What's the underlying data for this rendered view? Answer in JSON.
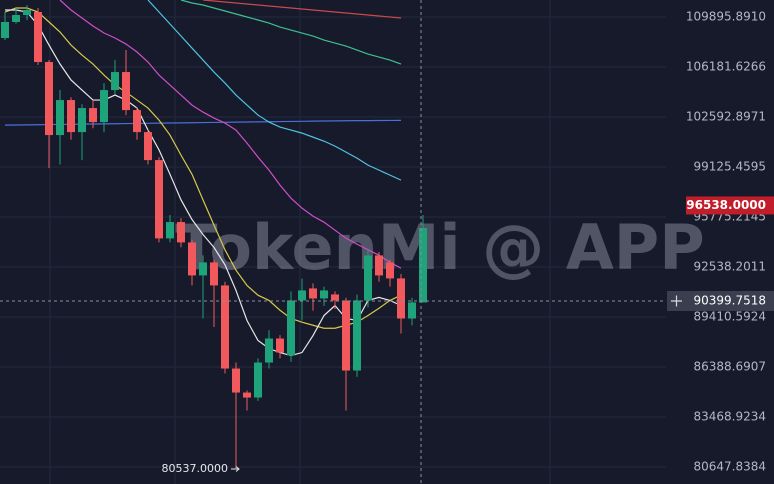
{
  "chart_data": {
    "type": "candlestick",
    "watermark": "TokenMi @ APP",
    "log_scale": true,
    "grid": true,
    "ylim": [
      79709,
      111189
    ],
    "yticks": [
      {
        "value": 109895.891,
        "label": "109895.8910"
      },
      106181.6266,
      102592.8971,
      99125.4595,
      95775.2145,
      92538.2011,
      89410.5924,
      86388.6907,
      83468.9234,
      80647.8384
    ],
    "up_color": "#1fa37a",
    "down_color": "#f2595c",
    "last_price": {
      "value": 96538,
      "label": "96538.0000"
    },
    "crosshair_price": 90399.7518,
    "low_marker": {
      "value": 80537,
      "label": "80537.0000"
    },
    "candles": {
      "open": [
        108320,
        109519,
        110047,
        110274,
        106545,
        101326,
        103795,
        101534,
        103225,
        102236,
        104512,
        105815,
        103083,
        101534,
        99596,
        94375,
        95442,
        94116,
        92003,
        92829,
        91372,
        86297,
        84883,
        84592,
        86654,
        88097,
        87072,
        90434,
        91184,
        90558,
        90808,
        90434,
        86178,
        90434,
        93277,
        92829,
        91813,
        89318,
        90309
      ],
      "high": [
        110274,
        110578,
        110800,
        110578,
        106691,
        104512,
        104000,
        103500,
        103795,
        105000,
        106691,
        107428,
        103300,
        101700,
        99800,
        95903,
        95700,
        94300,
        93277,
        93000,
        91600,
        86654,
        85000,
        86900,
        88600,
        88300,
        91000,
        91800,
        91500,
        91300,
        91000,
        90600,
        90800,
        93700,
        93500,
        93000,
        92100,
        90600,
        95903
      ],
      "low": [
        108170,
        109400,
        109670,
        106326,
        99050,
        99300,
        101000,
        99596,
        101800,
        101534,
        104200,
        102729,
        101000,
        99300,
        94116,
        94116,
        93800,
        91372,
        89318,
        88800,
        86000,
        80537,
        83838,
        84400,
        86297,
        86900,
        86700,
        89195,
        89800,
        90100,
        89900,
        83838,
        85800,
        90000,
        91600,
        91300,
        88400,
        88900,
        90309
      ],
      "close": [
        109519,
        110047,
        110427,
        106545,
        101326,
        103795,
        101534,
        103225,
        102236,
        104512,
        105815,
        103083,
        101534,
        99596,
        94375,
        95442,
        94116,
        92003,
        92829,
        91372,
        86297,
        84883,
        84592,
        86654,
        88097,
        87252,
        90434,
        91058,
        90558,
        91058,
        90434,
        86178,
        90434,
        93277,
        92003,
        91813,
        89318,
        90309,
        95049
      ]
    },
    "series": [
      {
        "color": "#4a6fd8",
        "values": [
          102024,
          102030,
          102040,
          102050,
          102060,
          102070,
          102080,
          102090,
          102100,
          102110,
          102120,
          102130,
          102140,
          102150,
          102160,
          102170,
          102180,
          102190,
          102200,
          102210,
          102220,
          102230,
          102240,
          102250,
          102260,
          102270,
          102280,
          102290,
          102300,
          102310,
          102320,
          102330,
          102335,
          102340,
          102345,
          102350,
          102355,
          null,
          null
        ]
      },
      {
        "color": "#c94a4a",
        "values": [
          null,
          null,
          null,
          null,
          null,
          null,
          null,
          null,
          null,
          null,
          null,
          null,
          null,
          null,
          null,
          null,
          null,
          null,
          111189,
          111113,
          111036,
          110960,
          110883,
          110807,
          110731,
          110655,
          110578,
          110502,
          110427,
          110351,
          110275,
          110199,
          110123,
          110048,
          109972,
          109896,
          109821,
          null,
          null
        ]
      },
      {
        "color": "#3fbf8f",
        "values": [
          null,
          null,
          null,
          null,
          null,
          null,
          null,
          null,
          null,
          null,
          null,
          null,
          null,
          null,
          null,
          null,
          111189,
          110960,
          110807,
          110578,
          110351,
          110123,
          109896,
          109670,
          109443,
          109142,
          108916,
          108692,
          108468,
          108170,
          107946,
          107723,
          107428,
          107133,
          106912,
          106691,
          106398,
          null,
          null
        ]
      },
      {
        "color": "#4fc3e0",
        "values": [
          null,
          null,
          null,
          null,
          null,
          null,
          null,
          null,
          null,
          null,
          null,
          null,
          null,
          111189,
          110274,
          109368,
          108468,
          107576,
          106691,
          105815,
          105016,
          104152,
          103437,
          102729,
          102236,
          101883,
          101675,
          101462,
          101183,
          100905,
          100558,
          100145,
          99732,
          99252,
          98912,
          98573,
          98235,
          null,
          null
        ]
      },
      {
        "color": "#d04ec8",
        "values": [
          null,
          null,
          null,
          null,
          null,
          111189,
          110427,
          109820,
          109218,
          108692,
          108320,
          107872,
          107281,
          106545,
          105595,
          104871,
          104152,
          103437,
          102941,
          102517,
          102165,
          101675,
          100767,
          99801,
          98912,
          97896,
          97024,
          96359,
          95830,
          95434,
          94911,
          94390,
          94003,
          93636,
          93293,
          92829,
          92461,
          null,
          null
        ]
      },
      {
        "color": "#d8c84a",
        "values": [
          110274,
          110578,
          110578,
          110274,
          109519,
          108767,
          107799,
          107059,
          106400,
          105595,
          104871,
          104366,
          103795,
          103225,
          102375,
          101326,
          99939,
          98628,
          96912,
          95238,
          93636,
          92334,
          91372,
          90759,
          90434,
          89826,
          89318,
          89089,
          88904,
          88722,
          88722,
          88904,
          89089,
          89502,
          89950,
          90434,
          90759,
          null,
          null
        ]
      },
      {
        "color": "#e8e8e8",
        "values": [
          110427,
          110427,
          110274,
          109289,
          107799,
          106400,
          105237,
          104512,
          103795,
          103795,
          104153,
          103795,
          103225,
          101675,
          100302,
          98628,
          96912,
          95609,
          94632,
          93792,
          92677,
          91058,
          89195,
          87975,
          87493,
          87252,
          87072,
          87252,
          88278,
          89502,
          90120,
          89318,
          89195,
          90434,
          90621,
          90434,
          90120,
          null,
          null
        ]
      }
    ]
  }
}
